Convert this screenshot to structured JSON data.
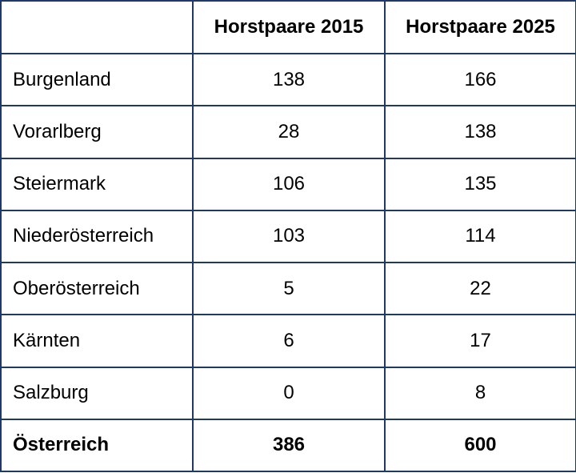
{
  "table": {
    "header": {
      "region": "",
      "col_2015": "Horstpaare 2015",
      "col_2025": "Horstpaare 2025"
    },
    "rows": [
      {
        "region": "Burgenland",
        "y2015": "138",
        "y2025": "166"
      },
      {
        "region": "Vorarlberg",
        "y2015": "28",
        "y2025": "138"
      },
      {
        "region": "Steiermark",
        "y2015": "106",
        "y2025": "135"
      },
      {
        "region": "Niederösterreich",
        "y2015": "103",
        "y2025": "114"
      },
      {
        "region": "Oberösterreich",
        "y2015": "5",
        "y2025": "22"
      },
      {
        "region": "Kärnten",
        "y2015": "6",
        "y2025": "17"
      },
      {
        "region": "Salzburg",
        "y2015": "0",
        "y2025": "8"
      }
    ],
    "total": {
      "region": "Österreich",
      "y2015": "386",
      "y2025": "600"
    }
  }
}
